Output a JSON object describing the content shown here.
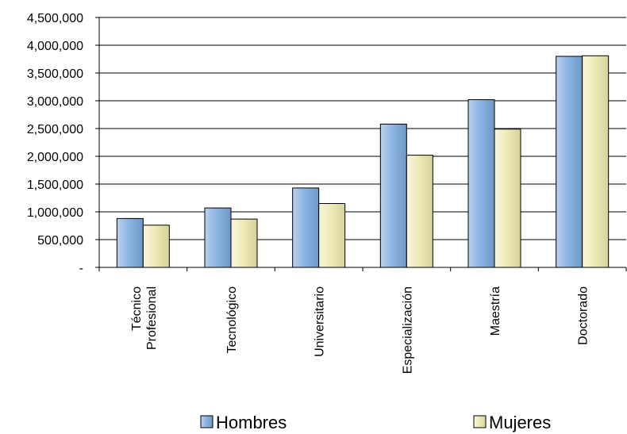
{
  "chart_data": {
    "type": "bar",
    "title": "",
    "xlabel": "",
    "ylabel": "",
    "categories": [
      [
        "Técnico",
        "Profesional"
      ],
      [
        "Tecnológico"
      ],
      [
        "Universitario"
      ],
      [
        "Especialización"
      ],
      [
        "Maestría"
      ],
      [
        "Doctorado"
      ]
    ],
    "series": [
      {
        "name": "Hombres",
        "values": [
          880000,
          1070000,
          1430000,
          2580000,
          3020000,
          3800000
        ],
        "color": "#8DB4E2"
      },
      {
        "name": "Mujeres",
        "values": [
          760000,
          870000,
          1150000,
          2020000,
          2490000,
          3810000
        ],
        "color": "#EEEBB9"
      }
    ],
    "ylim": [
      0,
      4500000
    ],
    "yticks": [
      0,
      500000,
      1000000,
      1500000,
      2000000,
      2500000,
      3000000,
      3500000,
      4000000,
      4500000
    ],
    "ytick_labels": [
      "-",
      "500,000",
      "1,000,000",
      "1,500,000",
      "2,000,000",
      "2,500,000",
      "3,000,000",
      "3,500,000",
      "4,000,000",
      "4,500,000"
    ],
    "grid": true,
    "legend_position": "bottom"
  }
}
